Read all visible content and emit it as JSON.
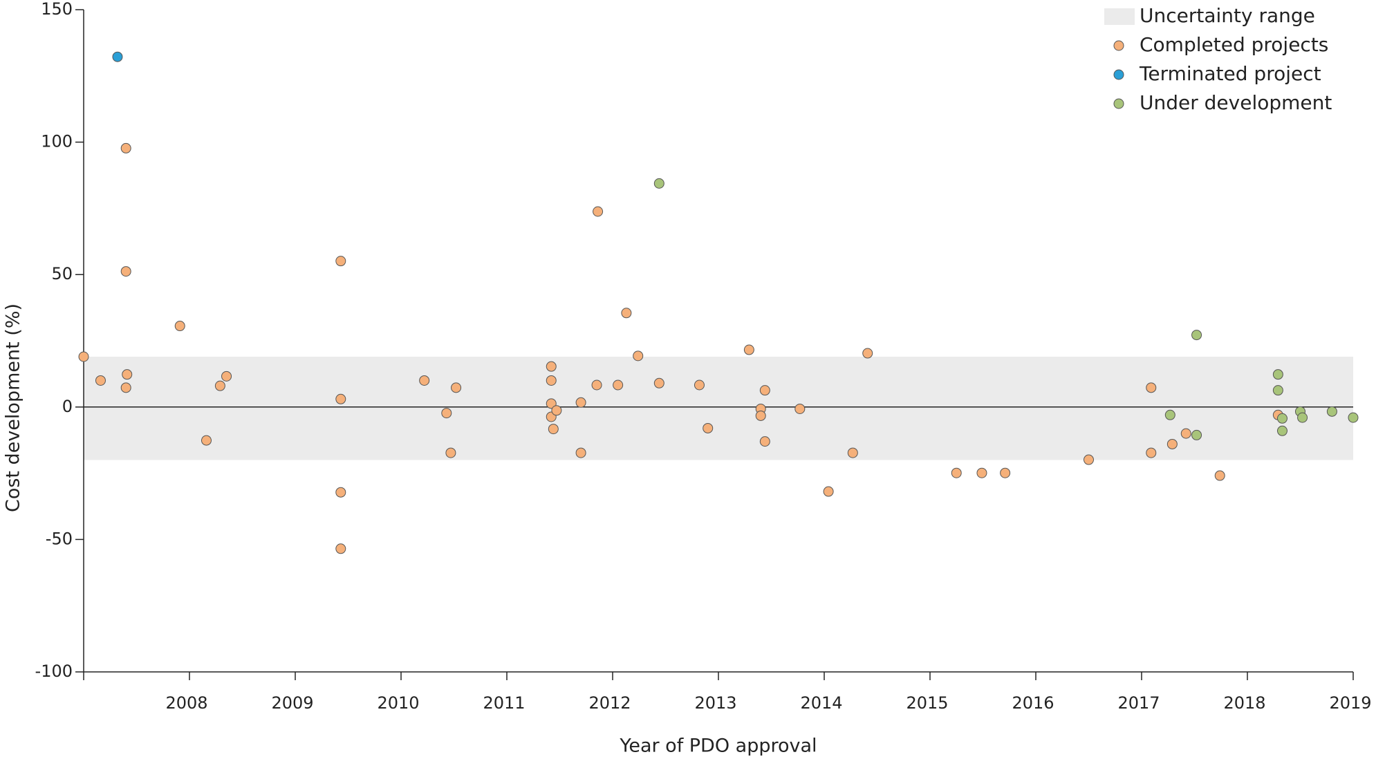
{
  "chart_data": {
    "type": "scatter",
    "x_label": "Year of PDO approval",
    "y_label": "Cost development (%)",
    "xlim": [
      2007,
      2019
    ],
    "xticks": [
      2008,
      2009,
      2010,
      2011,
      2012,
      2013,
      2014,
      2015,
      2016,
      2017,
      2018,
      2019
    ],
    "ylim": [
      -100,
      150
    ],
    "yticks": [
      -100,
      -50,
      0,
      50,
      100,
      150
    ],
    "zero_line": true,
    "legend": "top-right",
    "band": {
      "name": "Uncertainty range",
      "range": [
        -20,
        19
      ],
      "color": "#ebebeb"
    },
    "series": [
      {
        "name": "Completed projects",
        "color": "#f5b07a",
        "x": [
          2007.0,
          2007.16,
          2007.4,
          2007.4,
          2007.41,
          2007.4,
          2007.91,
          2008.16,
          2008.29,
          2008.35,
          2009.43,
          2009.43,
          2009.43,
          2009.43,
          2010.22,
          2010.43,
          2010.47,
          2010.52,
          2011.42,
          2011.42,
          2011.42,
          2011.42,
          2011.47,
          2011.44,
          2011.7,
          2011.7,
          2011.85,
          2011.86,
          2012.05,
          2012.13,
          2012.24,
          2012.44,
          2012.82,
          2012.9,
          2013.29,
          2013.4,
          2013.4,
          2013.44,
          2013.44,
          2013.77,
          2014.04,
          2014.27,
          2014.41,
          2015.25,
          2015.49,
          2015.71,
          2016.5,
          2017.09,
          2017.09,
          2017.29,
          2017.42,
          2017.74,
          2018.29
        ],
        "values": [
          19,
          10,
          97.7,
          51.2,
          12.3,
          7.3,
          30.6,
          -12.6,
          8,
          11.6,
          55.1,
          3,
          -32.2,
          -53.5,
          10,
          -2.3,
          -17.3,
          7.3,
          15.3,
          10,
          1.3,
          -3.7,
          -1.3,
          -8.3,
          1.7,
          -17.3,
          8.3,
          73.8,
          8.3,
          35.5,
          19.3,
          9,
          8.3,
          -8,
          21.6,
          -0.7,
          -3.3,
          6.3,
          -13,
          -0.7,
          -31.9,
          -17.3,
          20.3,
          -24.9,
          -24.9,
          -24.9,
          -19.9,
          7.3,
          -17.3,
          -14,
          -10,
          -25.9,
          -3
        ]
      },
      {
        "name": "Terminated project",
        "color": "#2a9fd6",
        "x": [
          2007.32
        ],
        "values": [
          132.2
        ]
      },
      {
        "name": "Under development",
        "color": "#a8c47a",
        "x": [
          2012.44,
          2017.52,
          2017.27,
          2017.52,
          2018.29,
          2018.29,
          2018.33,
          2018.33,
          2018.5,
          2018.52,
          2018.8,
          2019.0
        ],
        "values": [
          84.4,
          27.2,
          -3,
          -10.6,
          12.3,
          6.3,
          -4.3,
          -9,
          -1.7,
          -4,
          -1.7,
          -4
        ]
      }
    ]
  }
}
